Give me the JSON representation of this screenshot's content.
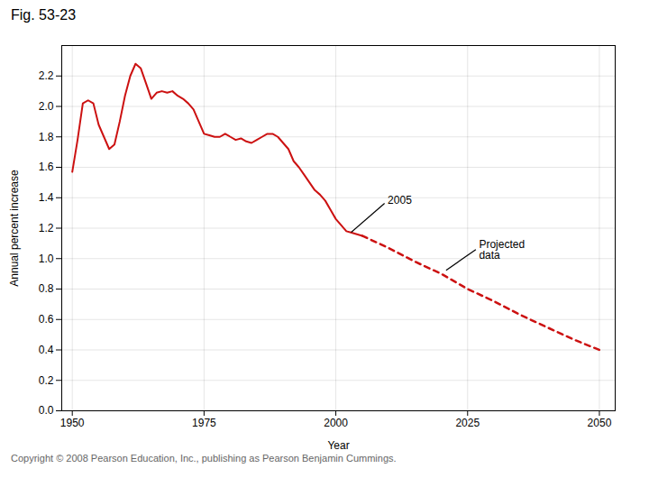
{
  "chart_data": {
    "type": "line",
    "title": "Fig. 53-23",
    "xlabel": "Year",
    "ylabel": "Annual percent increase",
    "caption": "Copyright © 2008 Pearson Education, Inc., publishing as Pearson Benjamin Cummings.",
    "series": [
      {
        "color": "#cc1111",
        "line_style": "solid",
        "x": [
          1950,
          1951,
          1952,
          1953,
          1954,
          1955,
          1956,
          1957,
          1958,
          1959,
          1960,
          1961,
          1962,
          1963,
          1964,
          1965,
          1966,
          1967,
          1968,
          1969,
          1970,
          1971,
          1972,
          1973,
          1974,
          1975,
          1976,
          1977,
          1978,
          1979,
          1980,
          1981,
          1982,
          1983,
          1984,
          1985,
          1986,
          1987,
          1988,
          1989,
          1990,
          1991,
          1992,
          1993,
          1994,
          1995,
          1996,
          1997,
          1998,
          1999,
          2000,
          2001,
          2002,
          2003,
          2004,
          2005
        ],
        "values": [
          1.57,
          1.78,
          2.02,
          2.04,
          2.02,
          1.88,
          1.8,
          1.72,
          1.75,
          1.9,
          2.07,
          2.2,
          2.28,
          2.25,
          2.15,
          2.05,
          2.09,
          2.1,
          2.09,
          2.1,
          2.07,
          2.05,
          2.02,
          1.98,
          1.9,
          1.82,
          1.81,
          1.8,
          1.8,
          1.82,
          1.8,
          1.78,
          1.79,
          1.77,
          1.76,
          1.78,
          1.8,
          1.82,
          1.82,
          1.8,
          1.76,
          1.72,
          1.64,
          1.6,
          1.55,
          1.5,
          1.45,
          1.42,
          1.38,
          1.32,
          1.26,
          1.22,
          1.18,
          1.17,
          1.16,
          1.15
        ]
      },
      {
        "color": "#cc1111",
        "line_style": "dashed",
        "x": [
          2005,
          2010,
          2015,
          2020,
          2025,
          2030,
          2035,
          2040,
          2045,
          2050
        ],
        "values": [
          1.15,
          1.07,
          0.98,
          0.9,
          0.8,
          0.72,
          0.63,
          0.55,
          0.47,
          0.4
        ]
      }
    ],
    "xlim": [
      1948,
      2053
    ],
    "xticks": [
      1950,
      1975,
      2000,
      2025,
      2050
    ],
    "ylim": [
      0,
      2.4
    ],
    "yticks": [
      {
        "value": 0,
        "label": "0.0"
      },
      0.2,
      0.4,
      0.6,
      0.8,
      {
        "value": 1.0,
        "label": "1.0"
      },
      1.2,
      1.4,
      1.6,
      1.8,
      {
        "value": 2.0,
        "label": "2.0"
      },
      2.2
    ],
    "grid": true,
    "annotations": [
      {
        "text": "2005",
        "x": 2003,
        "y": 1.17
      },
      {
        "text": "Projected\ndata",
        "x": 2021,
        "y": 0.92
      }
    ]
  }
}
